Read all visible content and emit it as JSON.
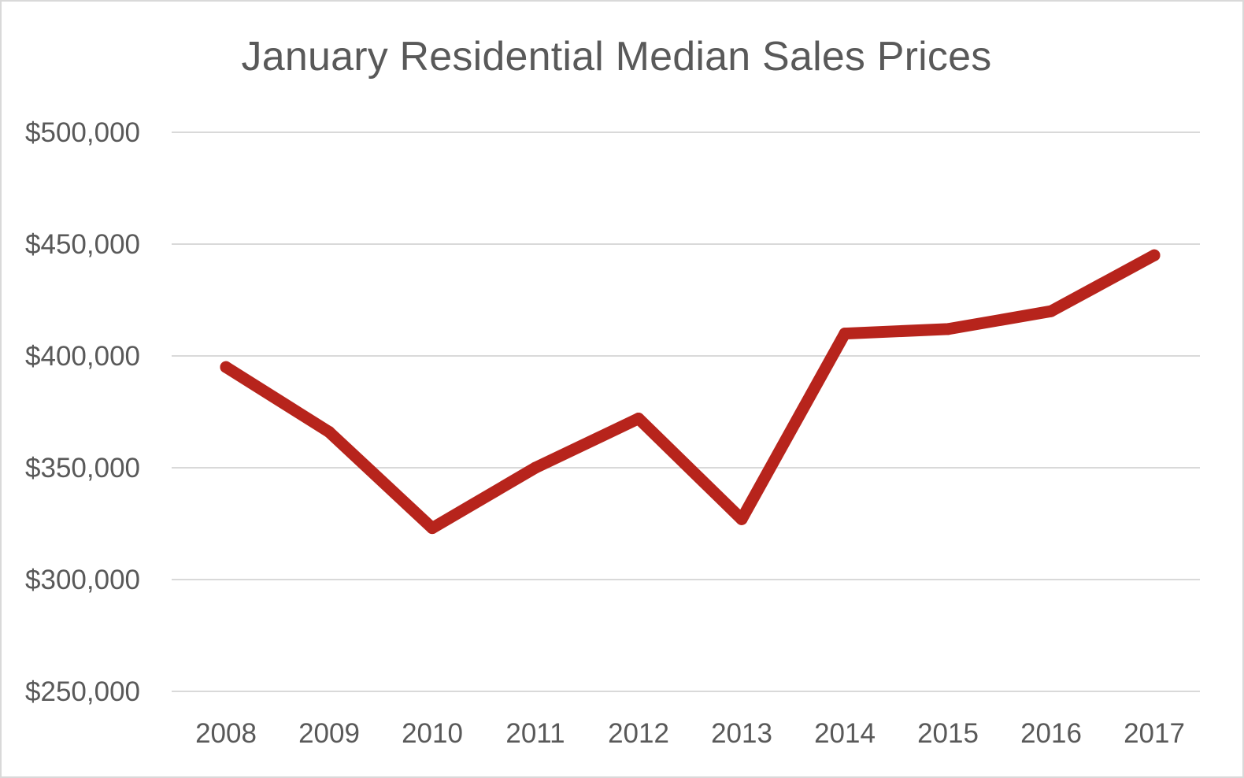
{
  "chart_data": {
    "type": "line",
    "title": "January Residential Median Sales Prices",
    "xlabel": "",
    "ylabel": "",
    "categories": [
      "2008",
      "2009",
      "2010",
      "2011",
      "2012",
      "2013",
      "2014",
      "2015",
      "2016",
      "2017"
    ],
    "series": [
      {
        "values": [
          395000,
          366000,
          323000,
          350000,
          372000,
          327000,
          410000,
          412000,
          420000,
          445000
        ]
      }
    ],
    "ylim": [
      250000,
      500000
    ],
    "yticks": [
      250000,
      300000,
      350000,
      400000,
      450000,
      500000
    ],
    "ytick_labels": [
      "$250,000",
      "$300,000",
      "$350,000",
      "$400,000",
      "$450,000",
      "$500,000"
    ],
    "grid": "horizontal",
    "legend": "none",
    "colors": {
      "line": "#b7241c",
      "gridline": "#d9d9d9",
      "text": "#595959"
    }
  }
}
